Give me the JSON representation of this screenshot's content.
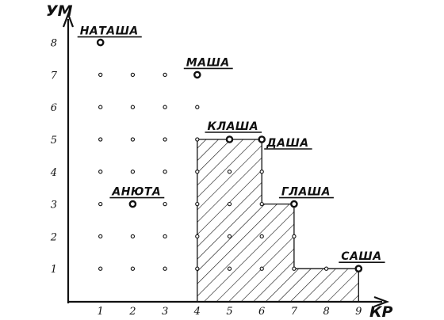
{
  "chart_data": {
    "type": "scatter",
    "xlabel": "КР",
    "ylabel": "УМ",
    "x_ticks": [
      "1",
      "2",
      "3",
      "4",
      "5",
      "6",
      "7",
      "8",
      "9"
    ],
    "y_ticks": [
      "1",
      "2",
      "3",
      "4",
      "5",
      "6",
      "7",
      "8"
    ],
    "xlim": [
      0,
      10
    ],
    "ylim": [
      0,
      9
    ],
    "grid_points": [
      [
        1,
        1
      ],
      [
        2,
        1
      ],
      [
        3,
        1
      ],
      [
        4,
        1
      ],
      [
        5,
        1
      ],
      [
        6,
        1
      ],
      [
        7,
        1
      ],
      [
        8,
        1
      ],
      [
        1,
        2
      ],
      [
        2,
        2
      ],
      [
        3,
        2
      ],
      [
        4,
        2
      ],
      [
        5,
        2
      ],
      [
        6,
        2
      ],
      [
        7,
        2
      ],
      [
        1,
        3
      ],
      [
        3,
        3
      ],
      [
        4,
        3
      ],
      [
        5,
        3
      ],
      [
        6,
        3
      ],
      [
        1,
        4
      ],
      [
        2,
        4
      ],
      [
        3,
        4
      ],
      [
        4,
        4
      ],
      [
        5,
        4
      ],
      [
        6,
        4
      ],
      [
        1,
        5
      ],
      [
        2,
        5
      ],
      [
        3,
        5
      ],
      [
        4,
        5
      ],
      [
        1,
        6
      ],
      [
        2,
        6
      ],
      [
        3,
        6
      ],
      [
        4,
        6
      ],
      [
        1,
        7
      ],
      [
        2,
        7
      ],
      [
        3,
        7
      ]
    ],
    "labeled_points": [
      {
        "name": "НАТАША",
        "x": 1,
        "y": 8
      },
      {
        "name": "МАША",
        "x": 4,
        "y": 7
      },
      {
        "name": "КЛАША",
        "x": 5,
        "y": 5
      },
      {
        "name": "ДАША",
        "x": 6,
        "y": 5
      },
      {
        "name": "АНЮТА",
        "x": 2,
        "y": 3
      },
      {
        "name": "ГЛАША",
        "x": 7,
        "y": 3
      },
      {
        "name": "САША",
        "x": 9,
        "y": 1
      }
    ],
    "hatched_region": [
      [
        4,
        0
      ],
      [
        4,
        5
      ],
      [
        6,
        5
      ],
      [
        6,
        3
      ],
      [
        7,
        3
      ],
      [
        7,
        1
      ],
      [
        9,
        1
      ],
      [
        9,
        0
      ]
    ]
  }
}
